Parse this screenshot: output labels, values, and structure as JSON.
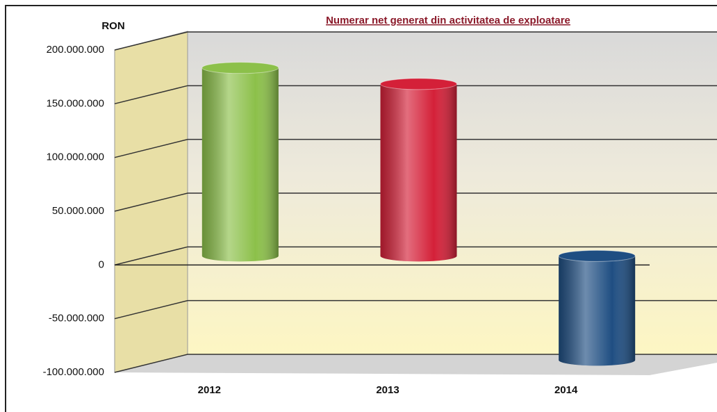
{
  "chart_data": {
    "type": "bar3d",
    "title": "Numerar net generat din activitatea de exploatare",
    "y_label": "RON",
    "categories": [
      "2012",
      "2013",
      "2014"
    ],
    "values": [
      175000000,
      160000000,
      -97000000
    ],
    "colors": [
      "#8cc04a",
      "#d42038",
      "#1f4e82"
    ],
    "ylim": [
      -100000000,
      200000000
    ],
    "yticks": [
      {
        "value": -100000000,
        "label": "-100.000.000"
      },
      {
        "value": -50000000,
        "label": "-50.000.000"
      },
      {
        "value": 0,
        "label": "0"
      },
      {
        "value": 50000000,
        "label": "50.000.000"
      },
      {
        "value": 100000000,
        "label": "100.000.000"
      },
      {
        "value": 150000000,
        "label": "150.000.000"
      },
      {
        "value": 200000000,
        "label": "200.000.000"
      }
    ],
    "grid": true
  }
}
